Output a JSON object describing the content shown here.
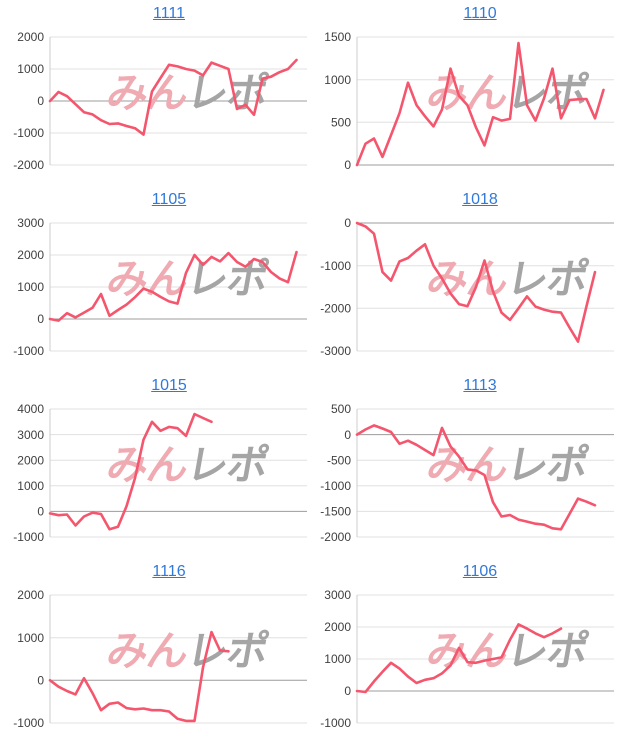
{
  "style": {
    "background": "#ffffff",
    "line_color": "#f4566e",
    "title_color": "#3179d9",
    "grid_color": "#e0e0e0",
    "zero_line_color": "#9c9c9c",
    "axis_line_color": "#cccccc",
    "tick_label_color": "#404040",
    "watermark_pink": "#efaab2",
    "watermark_gray": "#a5a5a5"
  },
  "watermark": {
    "pink_text": "みん",
    "gray_text": "レポ"
  },
  "chart_data": [
    {
      "title": "1111",
      "type": "line",
      "ylim": [
        -2000,
        2000
      ],
      "yticks": [
        2000,
        1000,
        0,
        -1000,
        -2000
      ],
      "x_slots": 31,
      "values": [
        0,
        280,
        150,
        -100,
        -350,
        -420,
        -600,
        -720,
        -700,
        -780,
        -850,
        -1050,
        300,
        720,
        1130,
        1080,
        1000,
        950,
        800,
        1200,
        1100,
        1000,
        -250,
        -120,
        -430,
        700,
        760,
        900,
        1000,
        1280
      ]
    },
    {
      "title": "1110",
      "type": "line",
      "ylim": [
        0,
        1500
      ],
      "yticks": [
        1500,
        1000,
        500,
        0
      ],
      "x_slots": 31,
      "values": [
        0,
        250,
        310,
        95,
        350,
        607,
        964,
        702,
        571,
        452,
        650,
        1130,
        810,
        700,
        440,
        230,
        560,
        520,
        540,
        1430,
        700,
        520,
        780,
        1130,
        547,
        761,
        770,
        773,
        547,
        880
      ]
    },
    {
      "title": "1105",
      "type": "line",
      "ylim": [
        -1000,
        3000
      ],
      "yticks": [
        3000,
        2000,
        1000,
        0,
        -1000
      ],
      "x_slots": 31,
      "values": [
        0,
        -50,
        180,
        50,
        200,
        350,
        780,
        100,
        280,
        450,
        680,
        950,
        850,
        690,
        550,
        480,
        1440,
        2000,
        1690,
        1940,
        1800,
        2060,
        1780,
        1630,
        1875,
        1780,
        1470,
        1270,
        1150,
        2090
      ]
    },
    {
      "title": "1018",
      "type": "line",
      "ylim": [
        -3000,
        0
      ],
      "yticks": [
        0,
        -1000,
        -2000,
        -3000
      ],
      "x_slots": 31,
      "values": [
        0,
        -80,
        -250,
        -1150,
        -1350,
        -900,
        -820,
        -650,
        -500,
        -1000,
        -1300,
        -1650,
        -1900,
        -1950,
        -1500,
        -880,
        -1600,
        -2100,
        -2270,
        -2000,
        -1720,
        -1960,
        -2030,
        -2080,
        -2100,
        -2450,
        -2780,
        -1950,
        -1150
      ]
    },
    {
      "title": "1015",
      "type": "line",
      "ylim": [
        -1000,
        4000
      ],
      "yticks": [
        4000,
        3000,
        2000,
        1000,
        0,
        -1000
      ],
      "x_slots": 31,
      "values": [
        -80,
        -150,
        -120,
        -550,
        -200,
        -50,
        -100,
        -700,
        -600,
        200,
        1300,
        2800,
        3500,
        3150,
        3300,
        3250,
        2950,
        3800,
        3650,
        3500
      ]
    },
    {
      "title": "1113",
      "type": "line",
      "ylim": [
        -2000,
        500
      ],
      "yticks": [
        500,
        0,
        -500,
        -1000,
        -1500,
        -2000
      ],
      "x_slots": 31,
      "values": [
        0,
        100,
        180,
        120,
        50,
        -180,
        -120,
        -200,
        -300,
        -400,
        130,
        -230,
        -430,
        -680,
        -700,
        -790,
        -1320,
        -1600,
        -1570,
        -1660,
        -1700,
        -1740,
        -1760,
        -1830,
        -1850,
        -1550,
        -1250,
        -1310,
        -1380
      ]
    },
    {
      "title": "1116",
      "type": "line",
      "ylim": [
        -1000,
        2000
      ],
      "yticks": [
        2000,
        1000,
        0,
        -1000
      ],
      "x_slots": 31,
      "values": [
        0,
        -150,
        -250,
        -330,
        50,
        -300,
        -700,
        -550,
        -520,
        -650,
        -680,
        -660,
        -700,
        -700,
        -730,
        -900,
        -950,
        -950,
        300,
        1130,
        700,
        680
      ]
    },
    {
      "title": "1106",
      "type": "line",
      "ylim": [
        -1000,
        3000
      ],
      "yticks": [
        3000,
        2000,
        1000,
        0,
        -1000
      ],
      "x_slots": 31,
      "values": [
        0,
        -30,
        300,
        600,
        880,
        700,
        450,
        250,
        350,
        400,
        550,
        800,
        1350,
        900,
        880,
        950,
        1000,
        1050,
        1600,
        2080,
        1950,
        1800,
        1680,
        1800,
        1950
      ]
    }
  ]
}
